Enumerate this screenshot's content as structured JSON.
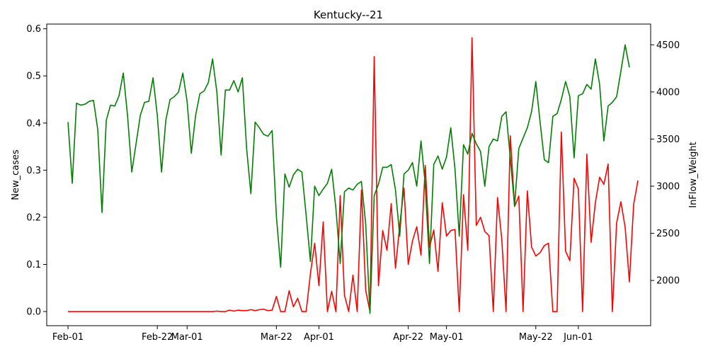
{
  "chart_data": {
    "type": "line",
    "title": "Kentucky--21",
    "xlabel": "",
    "ylabel_left": "New_cases",
    "ylabel_right": "InFlow_Weight",
    "x_start": "2021-02-01",
    "x_end": "2021-06-13",
    "xlim": [
      "2021-01-27",
      "2021-06-18"
    ],
    "xticks": [
      {
        "date": "2021-02-01",
        "label": "Feb-01"
      },
      {
        "date": "2021-02-22",
        "label": "Feb-22"
      },
      {
        "date": "2021-03-01",
        "label": "Mar-01"
      },
      {
        "date": "2021-03-22",
        "label": "Mar-22"
      },
      {
        "date": "2021-04-01",
        "label": "Apr-01"
      },
      {
        "date": "2021-04-22",
        "label": "Apr-22"
      },
      {
        "date": "2021-05-01",
        "label": "May-01"
      },
      {
        "date": "2021-05-22",
        "label": "May-22"
      },
      {
        "date": "2021-06-01",
        "label": "Jun-01"
      }
    ],
    "ylim_left": [
      -0.03,
      0.61
    ],
    "yticks_left": [
      0.0,
      0.1,
      0.2,
      0.3,
      0.4,
      0.5,
      0.6
    ],
    "ylim_right": [
      1520,
      4720
    ],
    "yticks_right": [
      2000,
      2500,
      3000,
      3500,
      4000,
      4500
    ],
    "grid": false,
    "series": [
      {
        "axis": "left",
        "color": "#ff0000",
        "values": [
          0,
          0,
          0,
          0,
          0,
          0,
          0,
          0,
          0,
          0,
          0,
          0,
          0,
          0,
          0,
          0,
          0,
          0,
          0,
          0,
          0,
          0,
          0,
          0,
          0,
          0,
          0,
          0,
          0,
          0,
          0,
          0,
          0,
          0,
          0,
          0.001,
          0,
          0,
          0.003,
          0.001,
          0.003,
          0.002,
          0.002,
          0.004,
          0.002,
          0.004,
          0.005,
          0.002,
          0.003,
          0.032,
          0,
          0,
          0.044,
          0.01,
          0.028,
          0,
          0,
          0.08,
          0.145,
          0.055,
          0.19,
          0,
          0.043,
          0,
          0.246,
          0.035,
          0,
          0.077,
          0,
          0.258,
          0.045,
          0,
          0.541,
          0.055,
          0.172,
          0.13,
          0.229,
          0.092,
          0.183,
          0.262,
          0.1,
          0.15,
          0.18,
          0.12,
          0.31,
          0.136,
          0.173,
          0.085,
          0.231,
          0.16,
          0.172,
          0.174,
          0,
          0.248,
          0.13,
          0.581,
          0.183,
          0.2,
          0.17,
          0.161,
          0,
          0.242,
          0.153,
          0,
          0.373,
          0.223,
          0.245,
          0,
          0.256,
          0.137,
          0.118,
          0.125,
          0.14,
          0.145,
          0,
          0,
          0.381,
          0.128,
          0.108,
          0.283,
          0.26,
          0,
          0.334,
          0.147,
          0.231,
          0.285,
          0.27,
          0.313,
          0,
          0.188,
          0.233,
          0.179,
          0.063,
          0.227,
          0.278
        ]
      },
      {
        "axis": "right",
        "color": "#008000",
        "values": [
          3680,
          3030,
          3880,
          3860,
          3870,
          3900,
          3910,
          3600,
          2720,
          3700,
          3860,
          3850,
          3960,
          4200,
          3750,
          3150,
          3450,
          3750,
          3890,
          3900,
          4150,
          3750,
          3150,
          3700,
          3920,
          3950,
          4000,
          4200,
          3900,
          3350,
          3750,
          3980,
          4010,
          4100,
          4350,
          4000,
          3330,
          4020,
          4020,
          4120,
          4000,
          4150,
          3400,
          2920,
          3680,
          3620,
          3550,
          3530,
          3590,
          2680,
          2140,
          3130,
          2990,
          3120,
          3180,
          3150,
          2690,
          2200,
          3000,
          2900,
          2970,
          3030,
          3180,
          2760,
          2180,
          2940,
          2980,
          2960,
          3020,
          3050,
          2600,
          1650,
          2900,
          3020,
          3200,
          3200,
          3230,
          2960,
          2470,
          3130,
          3170,
          3250,
          3000,
          3480,
          3020,
          2180,
          3230,
          3320,
          3180,
          3310,
          3620,
          3180,
          2470,
          3440,
          3340,
          3560,
          3450,
          3370,
          3000,
          3420,
          3500,
          3480,
          3740,
          3790,
          3300,
          2790,
          3400,
          3510,
          3620,
          3790,
          4110,
          3680,
          3280,
          3250,
          3740,
          3770,
          3920,
          4110,
          3950,
          3300,
          3960,
          3980,
          4080,
          4030,
          4350,
          4080,
          3480,
          3850,
          3890,
          3950,
          4220,
          4500,
          4260
        ]
      }
    ]
  }
}
